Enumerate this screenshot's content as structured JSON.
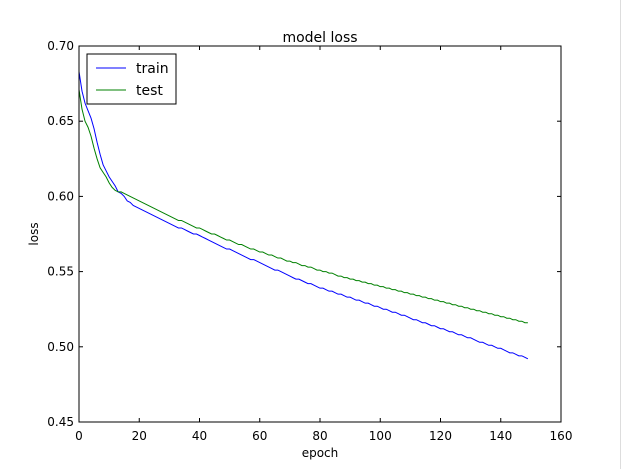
{
  "chart_data": {
    "type": "line",
    "title": "model loss",
    "xlabel": "epoch",
    "ylabel": "loss",
    "xlim": [
      0,
      160
    ],
    "ylim": [
      0.45,
      0.7
    ],
    "xticks": [
      0,
      20,
      40,
      60,
      80,
      100,
      120,
      140,
      160
    ],
    "yticks": [
      0.45,
      0.5,
      0.55,
      0.6,
      0.65,
      0.7
    ],
    "x_tick_labels": [
      "0",
      "20",
      "40",
      "60",
      "80",
      "100",
      "120",
      "140",
      "160"
    ],
    "y_tick_labels": [
      "0.45",
      "0.50",
      "0.55",
      "0.60",
      "0.65",
      "0.70"
    ],
    "legend_position": "top-left",
    "grid": false,
    "series": [
      {
        "name": "train",
        "color": "#0000ff",
        "values": [
          0.683,
          0.67,
          0.662,
          0.657,
          0.652,
          0.645,
          0.636,
          0.628,
          0.621,
          0.617,
          0.613,
          0.61,
          0.607,
          0.603,
          0.602,
          0.6,
          0.597,
          0.596,
          0.594,
          0.593,
          0.592,
          0.591,
          0.59,
          0.589,
          0.588,
          0.587,
          0.586,
          0.585,
          0.584,
          0.583,
          0.582,
          0.581,
          0.58,
          0.579,
          0.579,
          0.578,
          0.577,
          0.576,
          0.575,
          0.575,
          0.574,
          0.573,
          0.572,
          0.571,
          0.57,
          0.569,
          0.568,
          0.567,
          0.566,
          0.565,
          0.565,
          0.564,
          0.563,
          0.562,
          0.561,
          0.56,
          0.559,
          0.558,
          0.558,
          0.557,
          0.556,
          0.555,
          0.554,
          0.553,
          0.552,
          0.551,
          0.551,
          0.55,
          0.549,
          0.548,
          0.547,
          0.546,
          0.545,
          0.545,
          0.544,
          0.543,
          0.542,
          0.542,
          0.541,
          0.54,
          0.539,
          0.539,
          0.538,
          0.537,
          0.537,
          0.536,
          0.535,
          0.535,
          0.534,
          0.533,
          0.533,
          0.532,
          0.531,
          0.531,
          0.53,
          0.529,
          0.529,
          0.528,
          0.527,
          0.527,
          0.526,
          0.525,
          0.525,
          0.524,
          0.523,
          0.523,
          0.522,
          0.521,
          0.521,
          0.52,
          0.519,
          0.518,
          0.518,
          0.517,
          0.516,
          0.516,
          0.515,
          0.514,
          0.514,
          0.513,
          0.512,
          0.512,
          0.511,
          0.51,
          0.51,
          0.509,
          0.508,
          0.508,
          0.507,
          0.506,
          0.506,
          0.505,
          0.504,
          0.503,
          0.503,
          0.502,
          0.501,
          0.501,
          0.5,
          0.499,
          0.499,
          0.498,
          0.497,
          0.496,
          0.496,
          0.495,
          0.494,
          0.494,
          0.493,
          0.492
        ]
      },
      {
        "name": "test",
        "color": "#008000",
        "values": [
          0.671,
          0.658,
          0.65,
          0.646,
          0.64,
          0.632,
          0.625,
          0.619,
          0.616,
          0.613,
          0.609,
          0.606,
          0.604,
          0.603,
          0.603,
          0.602,
          0.601,
          0.6,
          0.599,
          0.598,
          0.597,
          0.596,
          0.595,
          0.594,
          0.593,
          0.592,
          0.591,
          0.59,
          0.589,
          0.588,
          0.587,
          0.586,
          0.585,
          0.584,
          0.584,
          0.583,
          0.582,
          0.581,
          0.58,
          0.579,
          0.579,
          0.578,
          0.577,
          0.576,
          0.575,
          0.575,
          0.574,
          0.573,
          0.572,
          0.571,
          0.571,
          0.57,
          0.569,
          0.568,
          0.568,
          0.567,
          0.566,
          0.565,
          0.565,
          0.564,
          0.563,
          0.563,
          0.562,
          0.561,
          0.561,
          0.56,
          0.559,
          0.559,
          0.558,
          0.557,
          0.557,
          0.556,
          0.556,
          0.555,
          0.554,
          0.554,
          0.553,
          0.553,
          0.552,
          0.551,
          0.551,
          0.55,
          0.55,
          0.549,
          0.549,
          0.548,
          0.547,
          0.547,
          0.546,
          0.546,
          0.545,
          0.545,
          0.544,
          0.544,
          0.543,
          0.543,
          0.542,
          0.542,
          0.541,
          0.541,
          0.54,
          0.54,
          0.539,
          0.539,
          0.538,
          0.538,
          0.537,
          0.537,
          0.536,
          0.536,
          0.535,
          0.535,
          0.534,
          0.534,
          0.533,
          0.533,
          0.532,
          0.532,
          0.531,
          0.531,
          0.53,
          0.53,
          0.529,
          0.529,
          0.528,
          0.528,
          0.527,
          0.527,
          0.526,
          0.526,
          0.525,
          0.525,
          0.524,
          0.524,
          0.523,
          0.523,
          0.522,
          0.522,
          0.521,
          0.521,
          0.52,
          0.52,
          0.519,
          0.519,
          0.518,
          0.518,
          0.517,
          0.517,
          0.516,
          0.516
        ]
      }
    ]
  }
}
